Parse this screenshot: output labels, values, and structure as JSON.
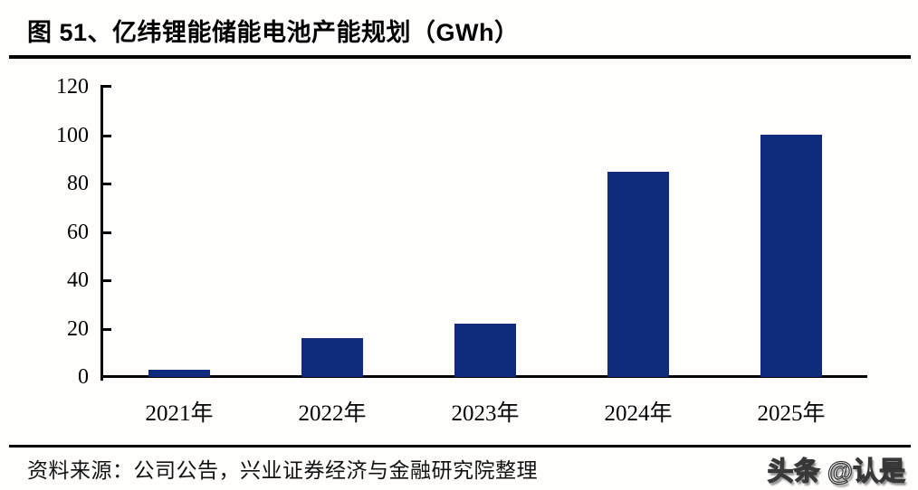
{
  "page": {
    "title": "图 51、亿纬锂能储能电池产能规划（GWh）"
  },
  "chart_data": {
    "type": "bar",
    "title": "图 51、亿纬锂能储能电池产能规划（GWh）",
    "categories": [
      "2021年",
      "2022年",
      "2023年",
      "2024年",
      "2025年"
    ],
    "values": [
      3,
      16,
      22,
      85,
      100
    ],
    "xlabel": "",
    "ylabel": "",
    "ylim": [
      0,
      120
    ],
    "yticks": [
      0,
      20,
      40,
      60,
      80,
      100,
      120
    ],
    "grid": false,
    "legend": "none",
    "bar_color": "#112b7c"
  },
  "footer": {
    "source_text": "资料来源：公司公告，兴业证券经济与金融研究院整理"
  },
  "watermark": {
    "text": "头条 @认是"
  },
  "colors": {
    "bar": "#112b7c",
    "axis": "#000000",
    "rule": "#000000",
    "background": "#fffefd",
    "text": "#000000"
  }
}
